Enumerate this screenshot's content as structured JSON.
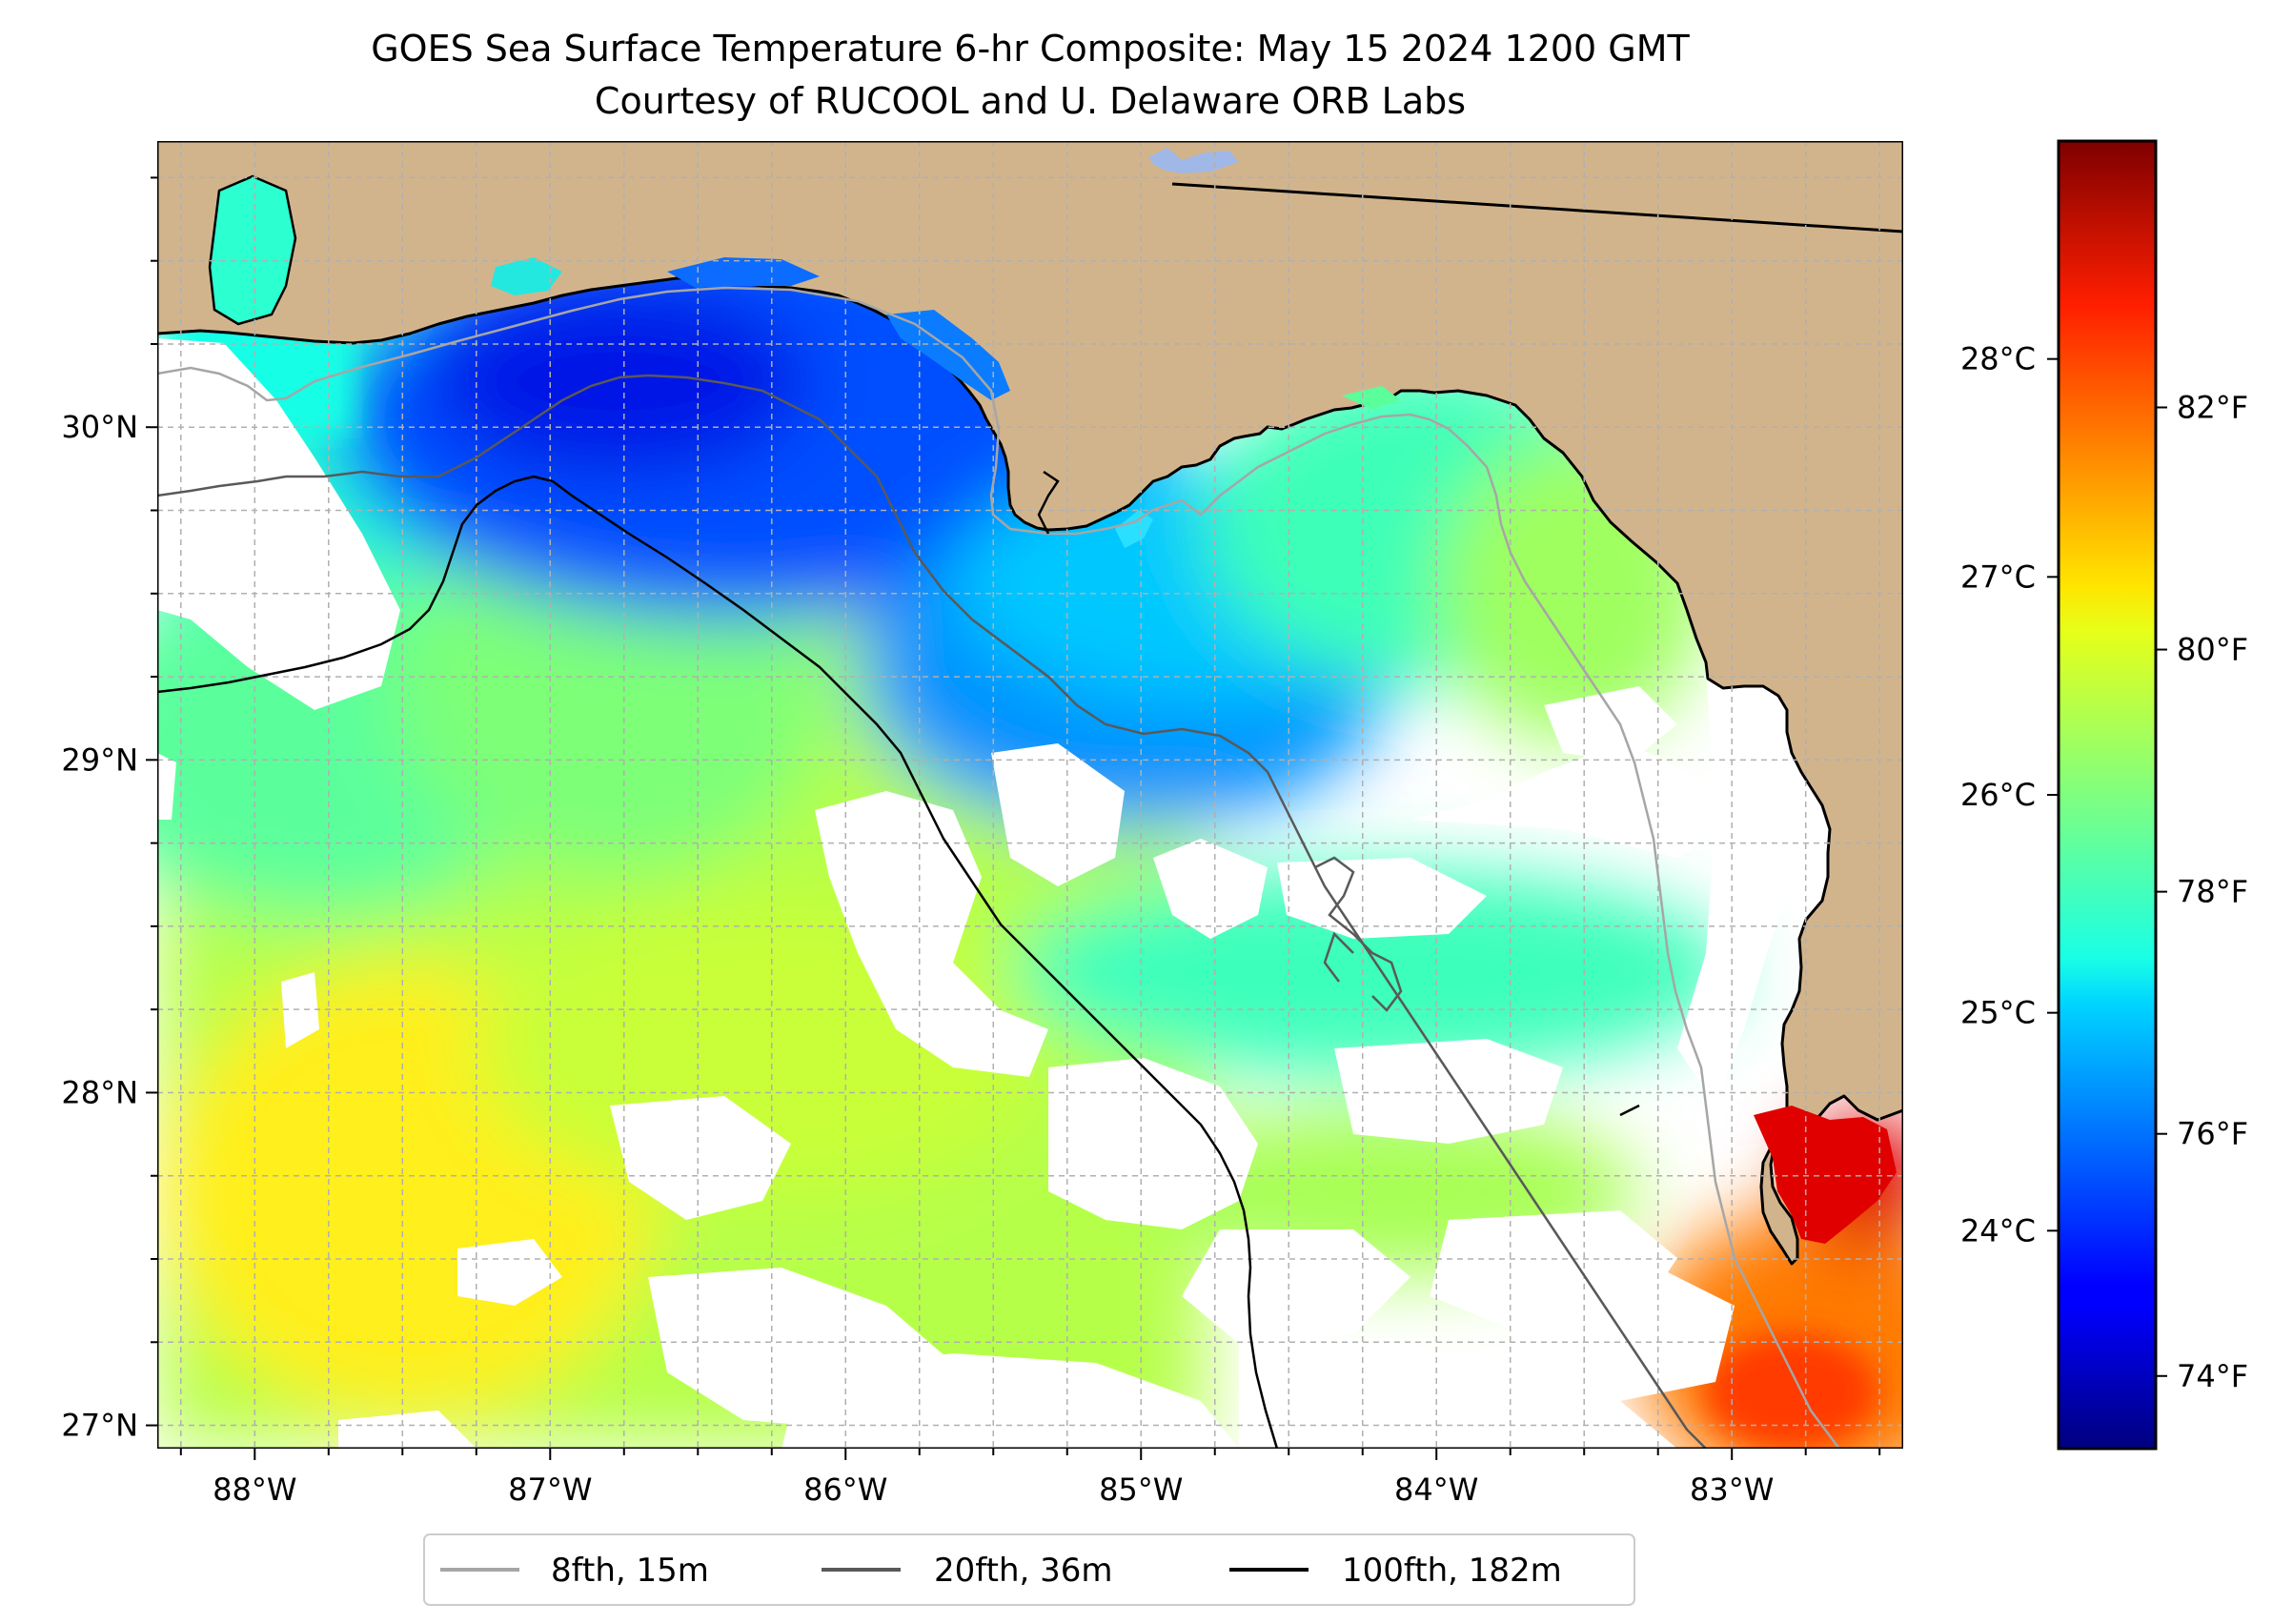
{
  "title": {
    "line1": "GOES Sea Surface Temperature 6-hr Composite: May 15 2024 1200 GMT",
    "line2": "Courtesy of RUCOOL and U. Delaware ORB Labs"
  },
  "colors": {
    "land": "#d2b48c",
    "nodata": "#ffffff",
    "coast": "#000000",
    "grid": "#b0b0b0",
    "iso_8fth": "#a6a6a6",
    "iso_20fth": "#595959",
    "iso_100fth": "#000000",
    "lake": "#9fb8e8"
  },
  "chart_data": {
    "type": "heatmap",
    "extent": {
      "lon": [
        -88.33,
        -82.42
      ],
      "lat": [
        26.93,
        30.86
      ]
    },
    "x_ticks": [
      "88°W",
      "87°W",
      "86°W",
      "85°W",
      "84°W",
      "83°W"
    ],
    "x_tick_values": [
      -88,
      -87,
      -86,
      -85,
      -84,
      -83
    ],
    "y_ticks": [
      "27°N",
      "28°N",
      "29°N",
      "30°N"
    ],
    "y_tick_values": [
      27,
      28,
      29,
      30
    ],
    "grid": true,
    "colorbar": {
      "cmap": "jet",
      "range_f": [
        73.4,
        84.2
      ],
      "celsius_ticks": [
        "24°C",
        "25°C",
        "26°C",
        "27°C",
        "28°C"
      ],
      "celsius_values": [
        24,
        25,
        26,
        27,
        28
      ],
      "fahrenheit_ticks": [
        "74°F",
        "76°F",
        "78°F",
        "80°F",
        "82°F"
      ],
      "fahrenheit_values": [
        74,
        76,
        78,
        80,
        82
      ]
    },
    "legend": {
      "placement": "bottom-center",
      "entries": [
        {
          "label": "8fth, 15m",
          "color_key": "iso_8fth"
        },
        {
          "label": "20fth, 36m",
          "color_key": "iso_20fth"
        },
        {
          "label": "100fth, 182m",
          "color_key": "iso_100fth"
        }
      ]
    }
  }
}
